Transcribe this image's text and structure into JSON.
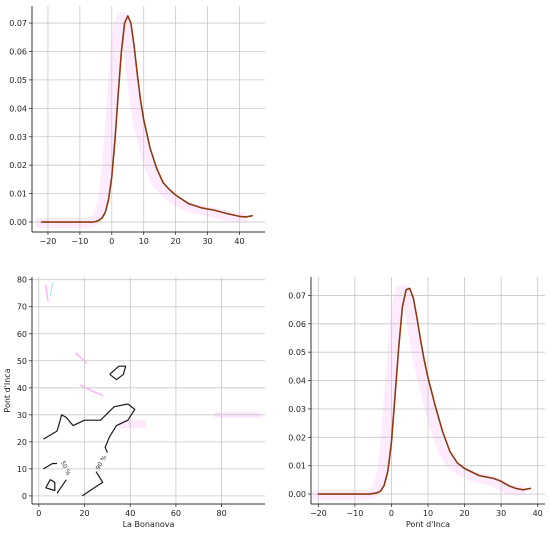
{
  "colors": {
    "kde_line": "#8b3a0f",
    "contour_line": "#1a1a1a",
    "grid": "#c8c8c8",
    "axis": "#333333",
    "smear_pink": "#ff80ff",
    "smear_cyan": "#5cd6d6",
    "smear_fill": "#fde3fd"
  },
  "chart_data": [
    {
      "id": "top-left",
      "type": "line",
      "title": "",
      "xlabel": "",
      "ylabel": "",
      "xlim": [
        -25,
        48
      ],
      "ylim": [
        -0.0035,
        0.076
      ],
      "xticks": [
        -20,
        -10,
        0,
        10,
        20,
        30,
        40
      ],
      "yticks": [
        0.0,
        0.01,
        0.02,
        0.03,
        0.04,
        0.05,
        0.06,
        0.07
      ],
      "ytick_labels": [
        "0.00",
        "0.01",
        "0.02",
        "0.03",
        "0.04",
        "0.05",
        "0.06",
        "0.07"
      ],
      "grid": true,
      "series": [
        {
          "x": [
            -22,
            -15,
            -10,
            -6,
            -5,
            -4,
            -3,
            -2,
            -1,
            0,
            1,
            2,
            3,
            4,
            5,
            6,
            7,
            8,
            9,
            10,
            12,
            14,
            16,
            18,
            20,
            24,
            28,
            32,
            36,
            40,
            42,
            44
          ],
          "y": [
            0.0,
            0.0,
            0.0,
            0.0,
            0.0002,
            0.0006,
            0.0015,
            0.0035,
            0.008,
            0.016,
            0.029,
            0.045,
            0.06,
            0.07,
            0.0725,
            0.07,
            0.062,
            0.052,
            0.043,
            0.036,
            0.026,
            0.019,
            0.014,
            0.0115,
            0.0095,
            0.0065,
            0.005,
            0.0042,
            0.003,
            0.002,
            0.0018,
            0.0022
          ]
        }
      ]
    },
    {
      "id": "bottom-left",
      "type": "contour",
      "title": "",
      "xlabel": "La Bonanova",
      "ylabel": "Pont d'Inca",
      "xlim": [
        -3,
        99
      ],
      "ylim": [
        -3,
        81
      ],
      "xticks": [
        0,
        20,
        40,
        60,
        80
      ],
      "yticks": [
        0,
        10,
        20,
        30,
        40,
        50,
        60,
        70,
        80
      ],
      "grid": true,
      "contour_labels": [
        "50 %",
        "90 %"
      ],
      "contours": [
        {
          "level": "90 %",
          "points": [
            [
              2,
              21
            ],
            [
              8,
              24
            ],
            [
              10,
              30
            ],
            [
              12,
              29
            ],
            [
              15,
              26
            ],
            [
              20,
              28
            ],
            [
              27,
              28
            ],
            [
              33,
              33
            ],
            [
              39,
              34
            ],
            [
              42,
              32
            ],
            [
              39,
              28
            ],
            [
              34,
              26
            ],
            [
              31,
              22
            ],
            [
              29,
              18
            ],
            [
              30,
              16
            ]
          ]
        },
        {
          "level": "90 %",
          "points": [
            [
              31,
              45
            ],
            [
              35,
              48
            ],
            [
              38,
              48
            ],
            [
              37,
              45
            ],
            [
              34,
              43
            ],
            [
              31,
              45
            ]
          ]
        },
        {
          "level": "90 %",
          "points": [
            [
              3,
              3
            ],
            [
              7,
              2
            ],
            [
              7,
              5
            ],
            [
              5,
              6
            ],
            [
              3,
              3
            ]
          ]
        },
        {
          "level": "50 %",
          "points": [
            [
              2,
              10
            ],
            [
              6,
              12
            ],
            [
              8,
              12
            ]
          ]
        },
        {
          "level": "50 %",
          "points": [
            [
              8,
              1
            ],
            [
              12,
              6
            ]
          ]
        },
        {
          "level": "90 %",
          "points": [
            [
              19,
              0
            ],
            [
              26,
              4
            ],
            [
              28,
              5
            ],
            [
              25,
              9
            ]
          ]
        }
      ]
    },
    {
      "id": "bottom-right",
      "type": "line",
      "title": "",
      "xlabel": "Pont d'Inca",
      "ylabel": "",
      "xlim": [
        -22,
        42
      ],
      "ylim": [
        -0.0035,
        0.0765
      ],
      "xticks": [
        -20,
        -10,
        0,
        10,
        20,
        30,
        40
      ],
      "yticks": [
        0.0,
        0.01,
        0.02,
        0.03,
        0.04,
        0.05,
        0.06,
        0.07
      ],
      "ytick_labels": [
        "0.00",
        "0.01",
        "0.02",
        "0.03",
        "0.04",
        "0.05",
        "0.06",
        "0.07"
      ],
      "grid": true,
      "series": [
        {
          "x": [
            -20,
            -15,
            -10,
            -6,
            -4,
            -3,
            -2,
            -1,
            0,
            1,
            2,
            3,
            4,
            5,
            6,
            7,
            8,
            9,
            10,
            12,
            14,
            16,
            18,
            20,
            24,
            28,
            30,
            32,
            34,
            36,
            38
          ],
          "y": [
            0.0,
            0.0,
            0.0,
            0.0,
            0.0004,
            0.001,
            0.003,
            0.008,
            0.018,
            0.035,
            0.052,
            0.066,
            0.072,
            0.0725,
            0.069,
            0.062,
            0.054,
            0.047,
            0.041,
            0.031,
            0.022,
            0.015,
            0.011,
            0.009,
            0.0065,
            0.0055,
            0.0045,
            0.003,
            0.002,
            0.0015,
            0.002
          ]
        }
      ]
    }
  ]
}
